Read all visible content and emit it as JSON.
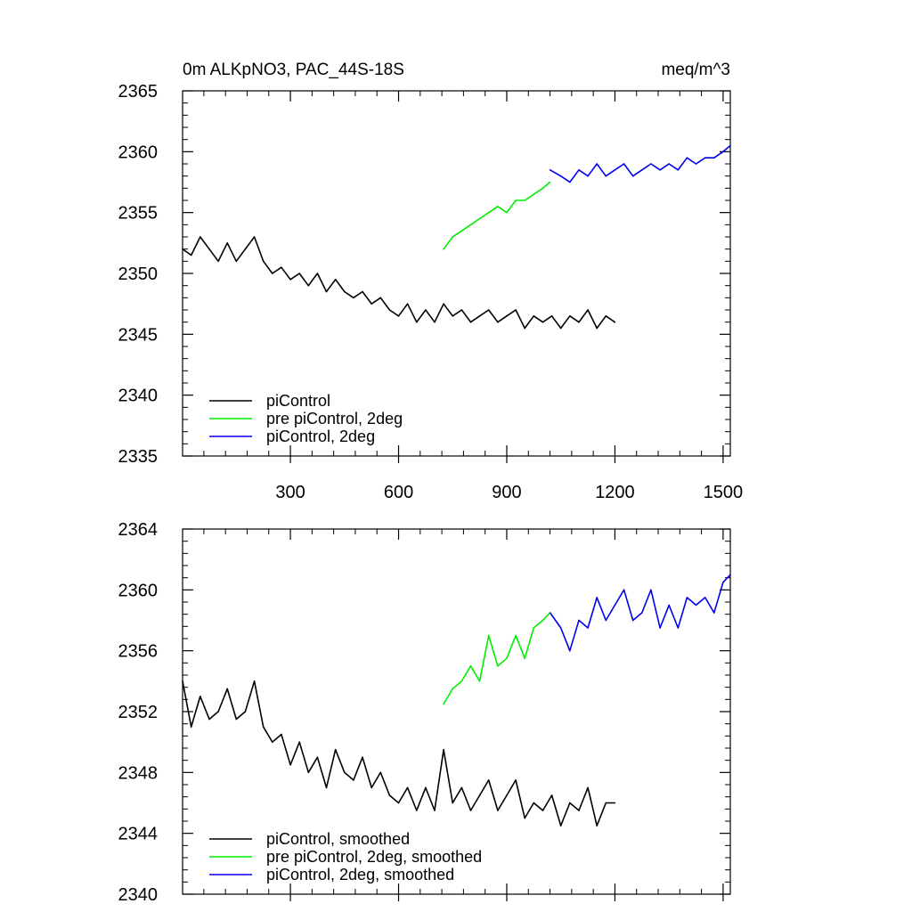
{
  "chart_data": [
    {
      "type": "line",
      "title": "0m ALKpNO3, PAC_44S-18S",
      "units": "meq/m^3",
      "xlabel": "",
      "ylabel": "",
      "xlim": [
        1,
        1520
      ],
      "ylim": [
        2335,
        2365
      ],
      "xticks": [
        300,
        600,
        900,
        1200,
        1500
      ],
      "yticks": [
        2335,
        2340,
        2345,
        2350,
        2355,
        2360,
        2365
      ],
      "grid": false,
      "legend_position": "bottom-left",
      "series": [
        {
          "name": "piControl",
          "color": "#000000",
          "x": [
            1,
            25,
            50,
            75,
            100,
            125,
            150,
            175,
            200,
            225,
            250,
            275,
            300,
            325,
            350,
            375,
            400,
            425,
            450,
            475,
            500,
            525,
            550,
            575,
            600,
            625,
            650,
            675,
            700,
            725,
            750,
            775,
            800,
            825,
            850,
            875,
            900,
            925,
            950,
            975,
            1000,
            1025,
            1050,
            1075,
            1100,
            1125,
            1150,
            1175,
            1200
          ],
          "values": [
            2352,
            2351.5,
            2353,
            2352,
            2351,
            2352.5,
            2351,
            2352,
            2353,
            2351,
            2350,
            2350.5,
            2349.5,
            2350,
            2349,
            2350,
            2348.5,
            2349.5,
            2348.5,
            2348,
            2348.5,
            2347.5,
            2348,
            2347,
            2346.5,
            2347.5,
            2346,
            2347,
            2346,
            2347.5,
            2346.5,
            2347,
            2346,
            2346.5,
            2347,
            2346,
            2346.5,
            2347,
            2345.5,
            2346.5,
            2346,
            2346.5,
            2345.5,
            2346.5,
            2346,
            2347,
            2345.5,
            2346.5,
            2346
          ]
        },
        {
          "name": "pre piControl, 2deg",
          "color": "#00ee00",
          "x": [
            725,
            750,
            775,
            800,
            825,
            850,
            875,
            900,
            925,
            950,
            975,
            1000,
            1020
          ],
          "values": [
            2352,
            2353,
            2353.5,
            2354,
            2354.5,
            2355,
            2355.5,
            2355,
            2356,
            2356,
            2356.5,
            2357,
            2357.5
          ]
        },
        {
          "name": "piControl, 2deg",
          "color": "#0000ee",
          "x": [
            1020,
            1050,
            1075,
            1100,
            1125,
            1150,
            1175,
            1200,
            1225,
            1250,
            1275,
            1300,
            1325,
            1350,
            1375,
            1400,
            1425,
            1450,
            1475,
            1500,
            1520
          ],
          "values": [
            2358.5,
            2358,
            2357.5,
            2358.5,
            2358,
            2359,
            2358,
            2358.5,
            2359,
            2358,
            2358.5,
            2359,
            2358.5,
            2359,
            2358.5,
            2359.5,
            2359,
            2359.5,
            2359.5,
            2360,
            2360.5
          ]
        }
      ]
    },
    {
      "type": "line",
      "title": "",
      "xlabel": "",
      "ylabel": "",
      "xlim": [
        1,
        1520
      ],
      "ylim": [
        2340,
        2364
      ],
      "xticks": [
        300,
        600,
        900,
        1200,
        1500
      ],
      "yticks": [
        2340,
        2344,
        2348,
        2352,
        2356,
        2360,
        2364
      ],
      "grid": false,
      "legend_position": "bottom-left",
      "series": [
        {
          "name": "piControl, smoothed",
          "color": "#000000",
          "x": [
            1,
            25,
            50,
            75,
            100,
            125,
            150,
            175,
            200,
            225,
            250,
            275,
            300,
            325,
            350,
            375,
            400,
            425,
            450,
            475,
            500,
            525,
            550,
            575,
            600,
            625,
            650,
            675,
            700,
            725,
            750,
            775,
            800,
            825,
            850,
            875,
            900,
            925,
            950,
            975,
            1000,
            1025,
            1050,
            1075,
            1100,
            1125,
            1150,
            1175,
            1200
          ],
          "values": [
            2354,
            2351,
            2353,
            2351.5,
            2352,
            2353.5,
            2351.5,
            2352,
            2354,
            2351,
            2350,
            2350.5,
            2348.5,
            2350,
            2348,
            2349,
            2347,
            2349.5,
            2348,
            2347.5,
            2349,
            2347,
            2348,
            2346.5,
            2346,
            2347,
            2345.5,
            2347,
            2345.5,
            2349.5,
            2346,
            2347,
            2345.5,
            2346.5,
            2347.5,
            2345.5,
            2346.5,
            2347.5,
            2345,
            2346,
            2345.5,
            2346.5,
            2344.5,
            2346,
            2345.5,
            2347,
            2344.5,
            2346,
            2346
          ]
        },
        {
          "name": "pre piControl, 2deg, smoothed",
          "color": "#00ee00",
          "x": [
            725,
            750,
            775,
            800,
            825,
            850,
            875,
            900,
            925,
            950,
            975,
            1000,
            1020
          ],
          "values": [
            2352.5,
            2353.5,
            2354,
            2355,
            2354,
            2357,
            2355,
            2355.5,
            2357,
            2355.5,
            2357.5,
            2358,
            2358.5
          ]
        },
        {
          "name": "piControl, 2deg, smoothed",
          "color": "#0000ee",
          "x": [
            1020,
            1050,
            1075,
            1100,
            1125,
            1150,
            1175,
            1200,
            1225,
            1250,
            1275,
            1300,
            1325,
            1350,
            1375,
            1400,
            1425,
            1450,
            1475,
            1500,
            1520
          ],
          "values": [
            2358.5,
            2357.5,
            2356,
            2358,
            2357.5,
            2359.5,
            2358,
            2359,
            2360,
            2358,
            2358.5,
            2360,
            2357.5,
            2359,
            2357.5,
            2359.5,
            2359,
            2359.5,
            2358.5,
            2360.5,
            2361
          ]
        }
      ]
    }
  ]
}
